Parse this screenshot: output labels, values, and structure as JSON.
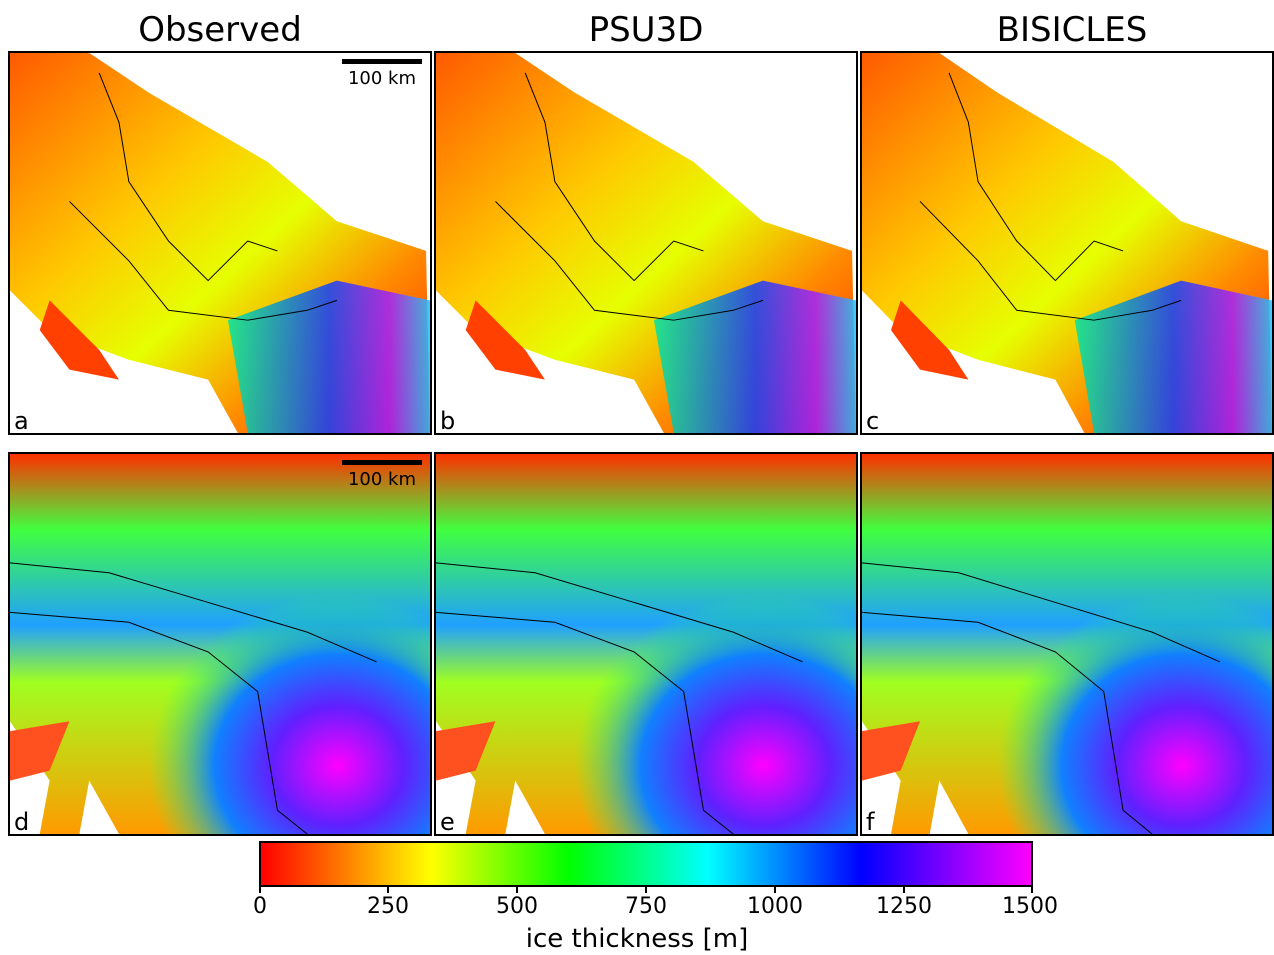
{
  "titles": [
    "Observed",
    "PSU3D",
    "BISICLES"
  ],
  "panels": [
    {
      "label": "a",
      "scale": "100 km",
      "row": "top"
    },
    {
      "label": "b",
      "scale": "",
      "row": "top"
    },
    {
      "label": "c",
      "scale": "",
      "row": "top"
    },
    {
      "label": "d",
      "scale": "100 km",
      "row": "bottom"
    },
    {
      "label": "e",
      "scale": "",
      "row": "bottom"
    },
    {
      "label": "f",
      "scale": "",
      "row": "bottom"
    }
  ],
  "colorbar": {
    "label": "ice thickness [m]",
    "ticks": [
      "0",
      "250",
      "500",
      "750",
      "1000",
      "1250",
      "1500"
    ],
    "min": 0,
    "max": 1500,
    "colors": [
      "#ff0000",
      "#ffff00",
      "#00ff00",
      "#00ffff",
      "#0000ff",
      "#ff00ff"
    ]
  }
}
